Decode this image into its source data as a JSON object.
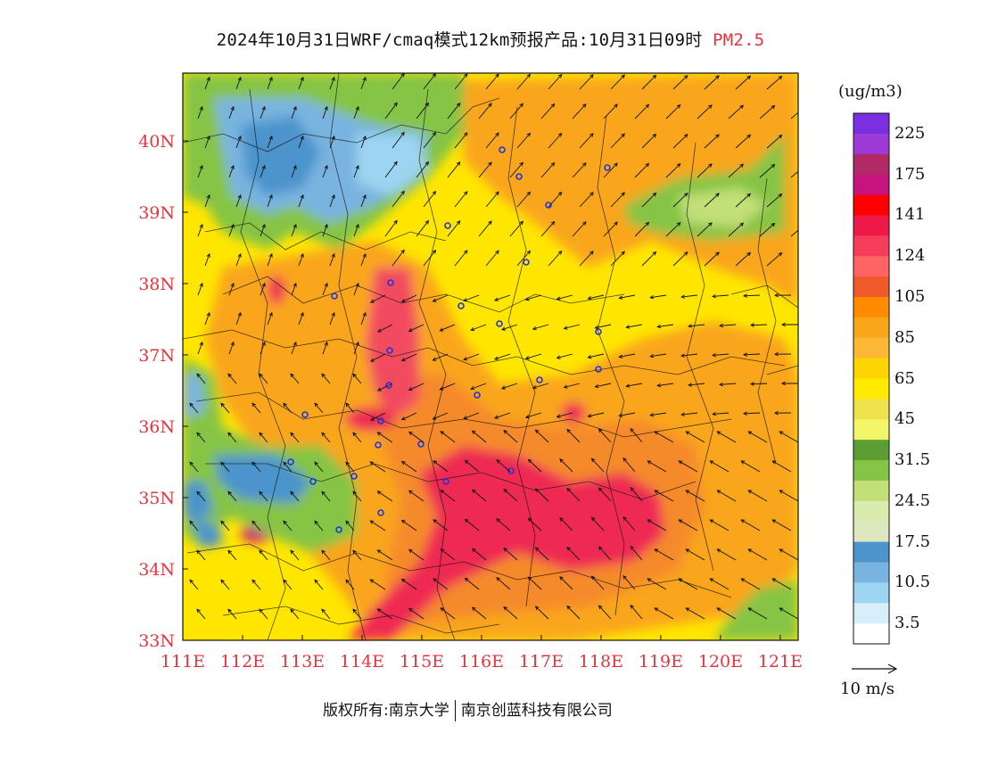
{
  "header": {
    "title_main": "2024年10月31日WRF/cmaq模式12km预报产品:10月31日09时",
    "title_species": "PM2.5"
  },
  "map": {
    "lon_labels": [
      "111E",
      "112E",
      "113E",
      "114E",
      "115E",
      "116E",
      "117E",
      "118E",
      "119E",
      "120E",
      "121E"
    ],
    "lat_labels": [
      "33N",
      "34N",
      "35N",
      "36N",
      "37N",
      "38N",
      "39N",
      "40N"
    ],
    "lon_range": [
      111,
      121.3
    ],
    "lat_range": [
      33,
      40.95
    ],
    "colors": {
      "ocean_green": "#5ba534",
      "low_blue": "#4b94cc",
      "mid_yellow": "#ffe600",
      "orange": "#f7a22a",
      "red": "#ee2a52",
      "axis_label": "#e8343c"
    }
  },
  "legend": {
    "unit": "(ug/m3)",
    "ticks": [
      "225",
      "175",
      "141",
      "124",
      "105",
      "85",
      "65",
      "45",
      "31.5",
      "24.5",
      "17.5",
      "10.5",
      "3.5"
    ],
    "bins": [
      {
        "color": "#7a2fe0"
      },
      {
        "color": "#9e3ad8"
      },
      {
        "color": "#b02a66"
      },
      {
        "color": "#c8137e"
      },
      {
        "color": "#ff0000"
      },
      {
        "color": "#f01848"
      },
      {
        "color": "#f53c5a"
      },
      {
        "color": "#ff6464"
      },
      {
        "color": "#f05a2a"
      },
      {
        "color": "#ff8c00"
      },
      {
        "color": "#f9a61b"
      },
      {
        "color": "#fcb834"
      },
      {
        "color": "#ffd500"
      },
      {
        "color": "#ffea00"
      },
      {
        "color": "#f0e24c"
      },
      {
        "color": "#f4f66a"
      },
      {
        "color": "#5c9e34"
      },
      {
        "color": "#86c445"
      },
      {
        "color": "#c2df78"
      },
      {
        "color": "#d9ebad"
      },
      {
        "color": "#dde8bf"
      },
      {
        "color": "#4b94cc"
      },
      {
        "color": "#79b4e0"
      },
      {
        "color": "#9cd4f1"
      },
      {
        "color": "#d8eefa"
      },
      {
        "color": "#ffffff"
      }
    ]
  },
  "wind_reference": {
    "label": "10  m/s"
  },
  "footer": {
    "copyright_left": "版权所有:南京大学",
    "copyright_right": "南京创蓝科技有限公司"
  }
}
